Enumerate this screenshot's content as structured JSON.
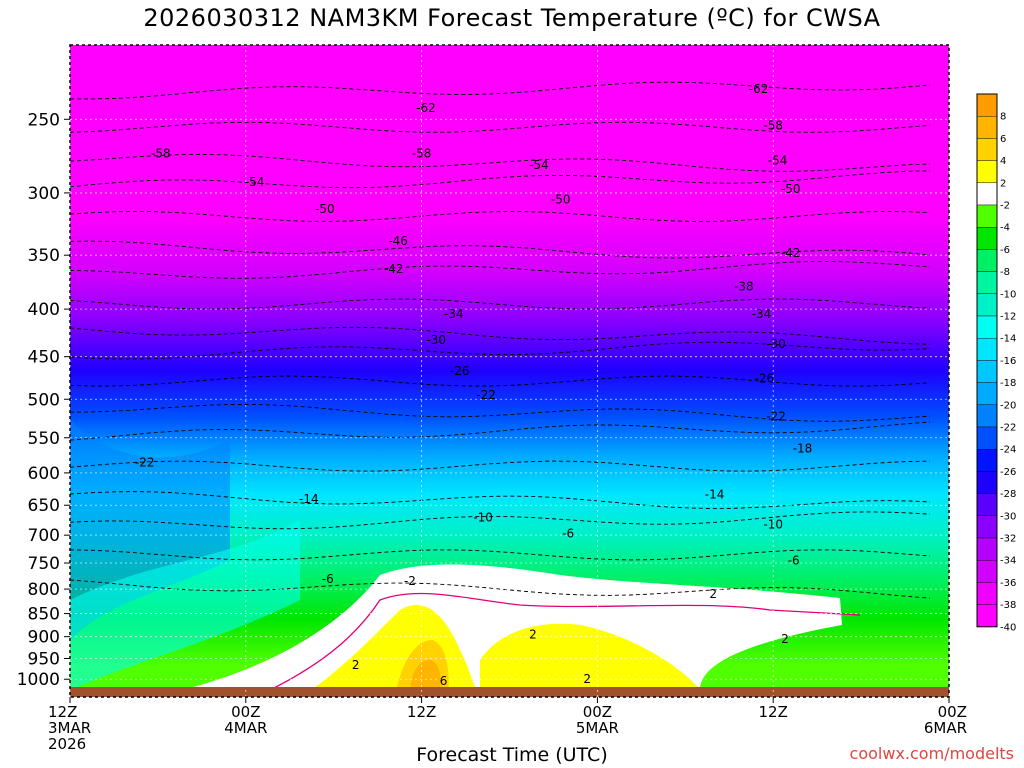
{
  "chart_data": {
    "type": "heatmap",
    "title": "2026030312 NAM3KM Forecast Temperature (ºC) for CWSA",
    "xlabel": "Forecast Time (UTC)",
    "credit": "coolwx.com/modelts",
    "x_range_hours": [
      0,
      60
    ],
    "y_axis": {
      "unit": "hPa",
      "log_scale": true,
      "ticks": [
        250,
        300,
        350,
        400,
        450,
        500,
        550,
        600,
        650,
        700,
        750,
        800,
        850,
        900,
        950,
        1000
      ]
    },
    "x_ticks": [
      {
        "hour": 0,
        "lines": [
          "12Z",
          "3MAR",
          "2026"
        ]
      },
      {
        "hour": 12,
        "lines": [
          "00Z",
          "4MAR"
        ]
      },
      {
        "hour": 24,
        "lines": [
          "12Z"
        ]
      },
      {
        "hour": 36,
        "lines": [
          "00Z",
          "5MAR"
        ]
      },
      {
        "hour": 48,
        "lines": [
          "12Z"
        ]
      },
      {
        "hour": 60,
        "lines": [
          "00Z",
          "6MAR"
        ]
      }
    ],
    "colorbar": {
      "labels": [
        "8",
        "6",
        "4",
        "2",
        "-2",
        "-4",
        "-6",
        "-8",
        "-10",
        "-12",
        "-14",
        "-16",
        "-18",
        "-20",
        "-22",
        "-24",
        "-26",
        "-28",
        "-30",
        "-32",
        "-34",
        "-36",
        "-38",
        "-40"
      ],
      "colors": [
        "#ff9c00",
        "#ffb400",
        "#ffd200",
        "#ffff00",
        "#ffffff",
        "#50ff00",
        "#00e600",
        "#00f064",
        "#00f5a0",
        "#00f0c8",
        "#00fff0",
        "#00e6ff",
        "#00c8ff",
        "#00aaff",
        "#0082ff",
        "#0050ff",
        "#0014ff",
        "#1e00ff",
        "#5a00ff",
        "#8c00ff",
        "#b400ff",
        "#d200ff",
        "#f000ff",
        "#ff00ff"
      ]
    },
    "contour_labels": [
      {
        "text": "-62",
        "hour": 24.3,
        "p": 243
      },
      {
        "text": "-62",
        "hour": 47.0,
        "p": 232
      },
      {
        "text": "-58",
        "hour": 6.2,
        "p": 272
      },
      {
        "text": "-58",
        "hour": 24.0,
        "p": 272
      },
      {
        "text": "-58",
        "hour": 48.0,
        "p": 254
      },
      {
        "text": "-54",
        "hour": 12.6,
        "p": 292
      },
      {
        "text": "-54",
        "hour": 32.0,
        "p": 280
      },
      {
        "text": "-54",
        "hour": 48.3,
        "p": 277
      },
      {
        "text": "-50",
        "hour": 17.4,
        "p": 312
      },
      {
        "text": "-50",
        "hour": 33.5,
        "p": 305
      },
      {
        "text": "-50",
        "hour": 49.2,
        "p": 297
      },
      {
        "text": "-46",
        "hour": 22.4,
        "p": 338
      },
      {
        "text": "-42",
        "hour": 22.1,
        "p": 362
      },
      {
        "text": "-42",
        "hour": 49.2,
        "p": 348
      },
      {
        "text": "-38",
        "hour": 46.0,
        "p": 378
      },
      {
        "text": "-34",
        "hour": 26.2,
        "p": 405
      },
      {
        "text": "-34",
        "hour": 47.2,
        "p": 405
      },
      {
        "text": "-30",
        "hour": 25.0,
        "p": 432
      },
      {
        "text": "-30",
        "hour": 48.2,
        "p": 436
      },
      {
        "text": "-26",
        "hour": 26.6,
        "p": 466
      },
      {
        "text": "-26",
        "hour": 47.4,
        "p": 475
      },
      {
        "text": "-22",
        "hour": 28.4,
        "p": 495
      },
      {
        "text": "-22",
        "hour": 48.2,
        "p": 522
      },
      {
        "text": "-22",
        "hour": 5.1,
        "p": 585
      },
      {
        "text": "-18",
        "hour": 50.0,
        "p": 565
      },
      {
        "text": "-14",
        "hour": 16.3,
        "p": 640
      },
      {
        "text": "-14",
        "hour": 44.0,
        "p": 633
      },
      {
        "text": "-10",
        "hour": 28.2,
        "p": 670
      },
      {
        "text": "-10",
        "hour": 48.0,
        "p": 682
      },
      {
        "text": "-6",
        "hour": 34.0,
        "p": 697
      },
      {
        "text": "-6",
        "hour": 49.4,
        "p": 745
      },
      {
        "text": "-6",
        "hour": 17.6,
        "p": 780
      },
      {
        "text": "-2",
        "hour": 23.2,
        "p": 784
      },
      {
        "text": "2",
        "hour": 43.9,
        "p": 810
      },
      {
        "text": "2",
        "hour": 31.6,
        "p": 895
      },
      {
        "text": "2",
        "hour": 48.8,
        "p": 905
      },
      {
        "text": "2",
        "hour": 19.5,
        "p": 965
      },
      {
        "text": "2",
        "hour": 35.3,
        "p": 1000
      },
      {
        "text": "6",
        "hour": 25.5,
        "p": 1005
      }
    ],
    "legend_placement": "right"
  }
}
